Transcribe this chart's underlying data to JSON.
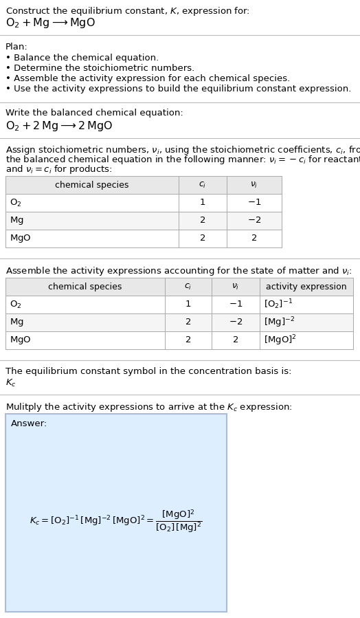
{
  "title_line1": "Construct the equilibrium constant, $K$, expression for:",
  "title_line2": "$\\mathrm{O_2 + Mg \\longrightarrow MgO}$",
  "plan_header": "Plan:",
  "plan_bullets": [
    "• Balance the chemical equation.",
    "• Determine the stoichiometric numbers.",
    "• Assemble the activity expression for each chemical species.",
    "• Use the activity expressions to build the equilibrium constant expression."
  ],
  "balanced_header": "Write the balanced chemical equation:",
  "balanced_eq": "$\\mathrm{O_2 + 2\\,Mg \\longrightarrow 2\\,MgO}$",
  "stoich_intro1": "Assign stoichiometric numbers, $\\nu_i$, using the stoichiometric coefficients, $c_i$, from",
  "stoich_intro2": "the balanced chemical equation in the following manner: $\\nu_i = -c_i$ for reactants",
  "stoich_intro3": "and $\\nu_i = c_i$ for products:",
  "table1_headers": [
    "chemical species",
    "$c_i$",
    "$\\nu_i$"
  ],
  "table1_rows": [
    [
      "$\\mathrm{O_2}$",
      "1",
      "$-1$"
    ],
    [
      "$\\mathrm{Mg}$",
      "2",
      "$-2$"
    ],
    [
      "$\\mathrm{MgO}$",
      "2",
      "2"
    ]
  ],
  "activity_intro": "Assemble the activity expressions accounting for the state of matter and $\\nu_i$:",
  "table2_headers": [
    "chemical species",
    "$c_i$",
    "$\\nu_i$",
    "activity expression"
  ],
  "table2_rows": [
    [
      "$\\mathrm{O_2}$",
      "1",
      "$-1$",
      "$[\\mathrm{O_2}]^{-1}$"
    ],
    [
      "$\\mathrm{Mg}$",
      "2",
      "$-2$",
      "$[\\mathrm{Mg}]^{-2}$"
    ],
    [
      "$\\mathrm{MgO}$",
      "2",
      "2",
      "$[\\mathrm{MgO}]^2$"
    ]
  ],
  "kc_text": "The equilibrium constant symbol in the concentration basis is:",
  "kc_symbol": "$K_c$",
  "multiply_text": "Mulitply the activity expressions to arrive at the $K_c$ expression:",
  "answer_label": "Answer:",
  "answer_eq": "$K_c = [\\mathrm{O_2}]^{-1}\\,[\\mathrm{Mg}]^{-2}\\,[\\mathrm{MgO}]^2 = \\dfrac{[\\mathrm{MgO}]^2}{[\\mathrm{O_2}]\\,[\\mathrm{Mg}]^2}$",
  "bg_color": "#ffffff",
  "answer_bg": "#ddeeff",
  "answer_border": "#aabbdd",
  "sep_color": "#bbbbbb",
  "text_color": "#000000",
  "table_header_bg": "#e8e8e8",
  "table_row_bg1": "#ffffff",
  "table_row_bg2": "#f5f5f5",
  "table_border": "#aaaaaa",
  "fs": 9.5,
  "fs_eq": 11.5
}
